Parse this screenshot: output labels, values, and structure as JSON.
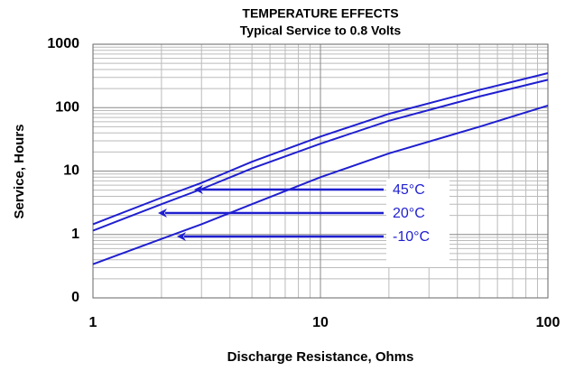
{
  "chart_data": {
    "type": "line",
    "title": "TEMPERATURE EFFECTS",
    "subtitle": "Typical Service to 0.8 Volts",
    "xlabel": "Discharge Resistance, Ohms",
    "ylabel": "Service, Hours",
    "x": [
      1,
      2,
      3,
      5,
      10,
      20,
      50,
      100
    ],
    "series": [
      {
        "name": "45°C",
        "color": "#1f1fd0",
        "values": [
          1.45,
          3.8,
          6.5,
          14,
          35,
          80,
          190,
          350
        ]
      },
      {
        "name": "20°C",
        "color": "#1f1fd0",
        "values": [
          1.15,
          3.0,
          5.2,
          11,
          27,
          62,
          150,
          275
        ]
      },
      {
        "name": "-10°C",
        "color": "#1f1fd0",
        "values": [
          0.34,
          0.85,
          1.45,
          3.0,
          8,
          19,
          50,
          108
        ]
      }
    ],
    "xlim": [
      1,
      100
    ],
    "xticks": [
      1,
      10,
      100
    ],
    "ylim": [
      0.1,
      1000
    ],
    "yticks": [
      {
        "value": 0.1,
        "label": "0"
      },
      1,
      10,
      100,
      1000
    ],
    "xlog": true,
    "ylog": true,
    "grid": true
  }
}
